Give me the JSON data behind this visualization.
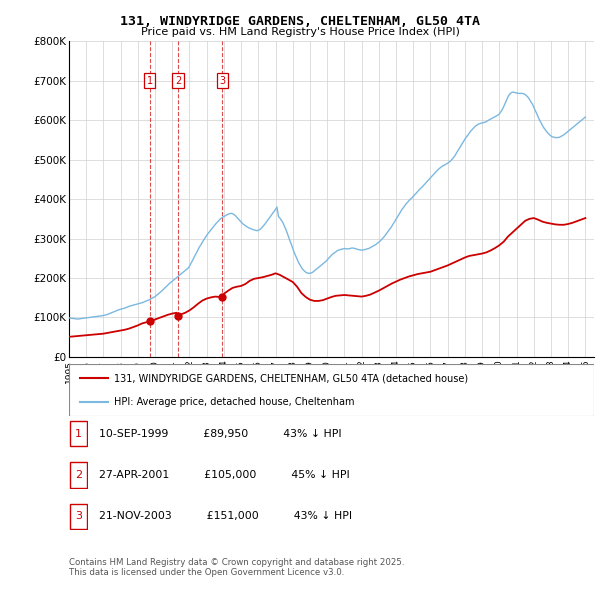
{
  "title": "131, WINDYRIDGE GARDENS, CHELTENHAM, GL50 4TA",
  "subtitle": "Price paid vs. HM Land Registry's House Price Index (HPI)",
  "hpi_label": "HPI: Average price, detached house, Cheltenham",
  "property_label": "131, WINDYRIDGE GARDENS, CHELTENHAM, GL50 4TA (detached house)",
  "footer": "Contains HM Land Registry data © Crown copyright and database right 2025.\nThis data is licensed under the Open Government Licence v3.0.",
  "hpi_color": "#7bb8e0",
  "property_color": "#cc0000",
  "vline_color": "#cc0000",
  "ylim": [
    0,
    800000
  ],
  "yticks": [
    0,
    100000,
    200000,
    300000,
    400000,
    500000,
    600000,
    700000,
    800000
  ],
  "ytick_labels": [
    "£0",
    "£100K",
    "£200K",
    "£300K",
    "£400K",
    "£500K",
    "£600K",
    "£700K",
    "£800K"
  ],
  "transactions": [
    {
      "label": "1",
      "date": "10-SEP-1999",
      "price_str": "£89,950",
      "hpi_rel": "43% ↓ HPI",
      "year": 1999.7,
      "price": 89950
    },
    {
      "label": "2",
      "date": "27-APR-2001",
      "price_str": "£105,000",
      "hpi_rel": "45% ↓ HPI",
      "year": 2001.33,
      "price": 105000
    },
    {
      "label": "3",
      "date": "21-NOV-2003",
      "price_str": "£151,000",
      "hpi_rel": "43% ↓ HPI",
      "year": 2003.89,
      "price": 151000
    }
  ],
  "hpi_data_x": [
    1995.0,
    1995.08,
    1995.17,
    1995.25,
    1995.33,
    1995.42,
    1995.5,
    1995.58,
    1995.67,
    1995.75,
    1995.83,
    1995.92,
    1996.0,
    1996.08,
    1996.17,
    1996.25,
    1996.33,
    1996.42,
    1996.5,
    1996.58,
    1996.67,
    1996.75,
    1996.83,
    1996.92,
    1997.0,
    1997.08,
    1997.17,
    1997.25,
    1997.33,
    1997.42,
    1997.5,
    1997.58,
    1997.67,
    1997.75,
    1997.83,
    1997.92,
    1998.0,
    1998.08,
    1998.17,
    1998.25,
    1998.33,
    1998.42,
    1998.5,
    1998.58,
    1998.67,
    1998.75,
    1998.83,
    1998.92,
    1999.0,
    1999.08,
    1999.17,
    1999.25,
    1999.33,
    1999.42,
    1999.5,
    1999.58,
    1999.67,
    1999.75,
    1999.83,
    1999.92,
    2000.0,
    2000.08,
    2000.17,
    2000.25,
    2000.33,
    2000.42,
    2000.5,
    2000.58,
    2000.67,
    2000.75,
    2000.83,
    2000.92,
    2001.0,
    2001.08,
    2001.17,
    2001.25,
    2001.33,
    2001.42,
    2001.5,
    2001.58,
    2001.67,
    2001.75,
    2001.83,
    2001.92,
    2002.0,
    2002.08,
    2002.17,
    2002.25,
    2002.33,
    2002.42,
    2002.5,
    2002.58,
    2002.67,
    2002.75,
    2002.83,
    2002.92,
    2003.0,
    2003.08,
    2003.17,
    2003.25,
    2003.33,
    2003.42,
    2003.5,
    2003.58,
    2003.67,
    2003.75,
    2003.83,
    2003.92,
    2004.0,
    2004.08,
    2004.17,
    2004.25,
    2004.33,
    2004.42,
    2004.5,
    2004.58,
    2004.67,
    2004.75,
    2004.83,
    2004.92,
    2005.0,
    2005.08,
    2005.17,
    2005.25,
    2005.33,
    2005.42,
    2005.5,
    2005.58,
    2005.67,
    2005.75,
    2005.83,
    2005.92,
    2006.0,
    2006.08,
    2006.17,
    2006.25,
    2006.33,
    2006.42,
    2006.5,
    2006.58,
    2006.67,
    2006.75,
    2006.83,
    2006.92,
    2007.0,
    2007.08,
    2007.17,
    2007.25,
    2007.33,
    2007.42,
    2007.5,
    2007.58,
    2007.67,
    2007.75,
    2007.83,
    2007.92,
    2008.0,
    2008.08,
    2008.17,
    2008.25,
    2008.33,
    2008.42,
    2008.5,
    2008.58,
    2008.67,
    2008.75,
    2008.83,
    2008.92,
    2009.0,
    2009.08,
    2009.17,
    2009.25,
    2009.33,
    2009.42,
    2009.5,
    2009.58,
    2009.67,
    2009.75,
    2009.83,
    2009.92,
    2010.0,
    2010.08,
    2010.17,
    2010.25,
    2010.33,
    2010.42,
    2010.5,
    2010.58,
    2010.67,
    2010.75,
    2010.83,
    2010.92,
    2011.0,
    2011.08,
    2011.17,
    2011.25,
    2011.33,
    2011.42,
    2011.5,
    2011.58,
    2011.67,
    2011.75,
    2011.83,
    2011.92,
    2012.0,
    2012.08,
    2012.17,
    2012.25,
    2012.33,
    2012.42,
    2012.5,
    2012.58,
    2012.67,
    2012.75,
    2012.83,
    2012.92,
    2013.0,
    2013.08,
    2013.17,
    2013.25,
    2013.33,
    2013.42,
    2013.5,
    2013.58,
    2013.67,
    2013.75,
    2013.83,
    2013.92,
    2014.0,
    2014.08,
    2014.17,
    2014.25,
    2014.33,
    2014.42,
    2014.5,
    2014.58,
    2014.67,
    2014.75,
    2014.83,
    2014.92,
    2015.0,
    2015.08,
    2015.17,
    2015.25,
    2015.33,
    2015.42,
    2015.5,
    2015.58,
    2015.67,
    2015.75,
    2015.83,
    2015.92,
    2016.0,
    2016.08,
    2016.17,
    2016.25,
    2016.33,
    2016.42,
    2016.5,
    2016.58,
    2016.67,
    2016.75,
    2016.83,
    2016.92,
    2017.0,
    2017.08,
    2017.17,
    2017.25,
    2017.33,
    2017.42,
    2017.5,
    2017.58,
    2017.67,
    2017.75,
    2017.83,
    2017.92,
    2018.0,
    2018.08,
    2018.17,
    2018.25,
    2018.33,
    2018.42,
    2018.5,
    2018.58,
    2018.67,
    2018.75,
    2018.83,
    2018.92,
    2019.0,
    2019.08,
    2019.17,
    2019.25,
    2019.33,
    2019.42,
    2019.5,
    2019.58,
    2019.67,
    2019.75,
    2019.83,
    2019.92,
    2020.0,
    2020.08,
    2020.17,
    2020.25,
    2020.33,
    2020.42,
    2020.5,
    2020.58,
    2020.67,
    2020.75,
    2020.83,
    2020.92,
    2021.0,
    2021.08,
    2021.17,
    2021.25,
    2021.33,
    2021.42,
    2021.5,
    2021.58,
    2021.67,
    2021.75,
    2021.83,
    2021.92,
    2022.0,
    2022.08,
    2022.17,
    2022.25,
    2022.33,
    2022.42,
    2022.5,
    2022.58,
    2022.67,
    2022.75,
    2022.83,
    2022.92,
    2023.0,
    2023.08,
    2023.17,
    2023.25,
    2023.33,
    2023.42,
    2023.5,
    2023.58,
    2023.67,
    2023.75,
    2023.83,
    2023.92,
    2024.0,
    2024.08,
    2024.17,
    2024.25,
    2024.33,
    2024.42,
    2024.5,
    2024.58,
    2024.67,
    2024.75,
    2024.83,
    2024.92,
    2025.0
  ],
  "hpi_data_y": [
    99000,
    98500,
    98000,
    97500,
    97000,
    96500,
    96000,
    96500,
    97000,
    97500,
    98000,
    98500,
    99000,
    99500,
    100000,
    100500,
    101000,
    101500,
    102000,
    102500,
    103000,
    103500,
    104000,
    104500,
    105000,
    106000,
    107000,
    108000,
    109500,
    111000,
    112500,
    114000,
    115500,
    117000,
    118500,
    120000,
    121000,
    122000,
    123000,
    124000,
    125500,
    127000,
    128500,
    129500,
    130500,
    131500,
    132500,
    133500,
    134500,
    135500,
    136500,
    137500,
    139000,
    140500,
    142000,
    143500,
    145000,
    147000,
    149000,
    151000,
    153000,
    156000,
    159000,
    162000,
    165000,
    168500,
    172000,
    175500,
    179000,
    182500,
    186000,
    189500,
    192000,
    195000,
    198000,
    201000,
    204000,
    207000,
    210000,
    213000,
    216000,
    219000,
    222000,
    225000,
    230000,
    237000,
    244000,
    251000,
    258000,
    265000,
    272000,
    279000,
    285000,
    291000,
    297000,
    303000,
    308000,
    313000,
    318000,
    322000,
    327000,
    332000,
    336000,
    340000,
    344000,
    348000,
    351000,
    354000,
    356000,
    358000,
    360000,
    362000,
    363000,
    364000,
    363000,
    361000,
    358000,
    354000,
    350000,
    346000,
    342000,
    338000,
    335000,
    332000,
    330000,
    328000,
    326000,
    325000,
    323000,
    322000,
    321000,
    320000,
    321000,
    323000,
    326000,
    330000,
    334000,
    339000,
    344000,
    349000,
    354000,
    359000,
    364000,
    369000,
    374000,
    380000,
    356000,
    352000,
    347000,
    341000,
    333000,
    325000,
    315000,
    305000,
    295000,
    285000,
    275000,
    265000,
    256000,
    248000,
    240000,
    233000,
    227000,
    222000,
    218000,
    215000,
    213000,
    212000,
    212000,
    213000,
    215000,
    218000,
    221000,
    224000,
    227000,
    230000,
    233000,
    236000,
    239000,
    242000,
    246000,
    250000,
    254000,
    258000,
    261000,
    264000,
    267000,
    269000,
    271000,
    272000,
    273000,
    274000,
    275000,
    274000,
    274000,
    274000,
    275000,
    276000,
    276000,
    275000,
    274000,
    273000,
    272000,
    271000,
    271000,
    271000,
    272000,
    273000,
    274000,
    275000,
    277000,
    279000,
    281000,
    283000,
    285000,
    288000,
    291000,
    294000,
    298000,
    302000,
    306000,
    311000,
    316000,
    321000,
    326000,
    331000,
    337000,
    343000,
    349000,
    355000,
    361000,
    367000,
    373000,
    378000,
    383000,
    388000,
    392000,
    396000,
    400000,
    403000,
    407000,
    411000,
    415000,
    419000,
    423000,
    427000,
    430000,
    434000,
    438000,
    442000,
    446000,
    450000,
    454000,
    458000,
    462000,
    466000,
    470000,
    474000,
    477000,
    480000,
    483000,
    485000,
    487000,
    489000,
    491000,
    494000,
    497000,
    501000,
    505000,
    510000,
    516000,
    522000,
    528000,
    534000,
    540000,
    546000,
    552000,
    557000,
    562000,
    567000,
    572000,
    576000,
    580000,
    584000,
    587000,
    589000,
    591000,
    592000,
    593000,
    594000,
    595000,
    597000,
    599000,
    601000,
    603000,
    605000,
    607000,
    609000,
    611000,
    613000,
    616000,
    621000,
    627000,
    634000,
    642000,
    651000,
    659000,
    665000,
    669000,
    671000,
    671000,
    670000,
    669000,
    668000,
    668000,
    668000,
    668000,
    667000,
    665000,
    662000,
    658000,
    653000,
    647000,
    641000,
    633000,
    625000,
    617000,
    609000,
    601000,
    594000,
    587000,
    581000,
    576000,
    571000,
    567000,
    563000,
    560000,
    558000,
    557000,
    556000,
    556000,
    556000,
    557000,
    559000,
    561000,
    563000,
    566000,
    569000,
    572000,
    575000,
    578000,
    581000,
    584000,
    587000,
    590000,
    593000,
    596000,
    599000,
    602000,
    605000,
    608000
  ],
  "prop_data_x": [
    1995.0,
    1995.25,
    1995.5,
    1995.75,
    1996.0,
    1996.25,
    1996.5,
    1996.75,
    1997.0,
    1997.25,
    1997.5,
    1997.75,
    1998.0,
    1998.25,
    1998.5,
    1998.75,
    1999.0,
    1999.25,
    1999.5,
    1999.7,
    1999.75,
    2000.0,
    2000.25,
    2000.5,
    2000.75,
    2001.0,
    2001.25,
    2001.33,
    2001.5,
    2001.75,
    2002.0,
    2002.25,
    2002.5,
    2002.75,
    2003.0,
    2003.25,
    2003.5,
    2003.75,
    2003.89,
    2004.0,
    2004.25,
    2004.5,
    2004.75,
    2005.0,
    2005.25,
    2005.5,
    2005.75,
    2006.0,
    2006.25,
    2006.5,
    2006.75,
    2007.0,
    2007.25,
    2007.5,
    2007.75,
    2008.0,
    2008.25,
    2008.5,
    2008.75,
    2009.0,
    2009.25,
    2009.5,
    2009.75,
    2010.0,
    2010.25,
    2010.5,
    2010.75,
    2011.0,
    2011.25,
    2011.5,
    2011.75,
    2012.0,
    2012.25,
    2012.5,
    2012.75,
    2013.0,
    2013.25,
    2013.5,
    2013.75,
    2014.0,
    2014.25,
    2014.5,
    2014.75,
    2015.0,
    2015.25,
    2015.5,
    2015.75,
    2016.0,
    2016.25,
    2016.5,
    2016.75,
    2017.0,
    2017.25,
    2017.5,
    2017.75,
    2018.0,
    2018.25,
    2018.5,
    2018.75,
    2019.0,
    2019.25,
    2019.5,
    2019.75,
    2020.0,
    2020.25,
    2020.5,
    2020.75,
    2021.0,
    2021.25,
    2021.5,
    2021.75,
    2022.0,
    2022.25,
    2022.5,
    2022.75,
    2023.0,
    2023.25,
    2023.5,
    2023.75,
    2024.0,
    2024.25,
    2024.5,
    2024.75,
    2025.0
  ],
  "prop_data_y": [
    51000,
    52000,
    53000,
    54000,
    55000,
    56000,
    57000,
    58000,
    59000,
    61000,
    63000,
    65000,
    67000,
    69000,
    72000,
    76000,
    80000,
    85000,
    88000,
    89950,
    90500,
    95000,
    99000,
    103000,
    107000,
    110000,
    112000,
    105000,
    108000,
    112000,
    118000,
    126000,
    135000,
    143000,
    148000,
    151000,
    153000,
    152000,
    151000,
    160000,
    168000,
    175000,
    178000,
    180000,
    185000,
    193000,
    198000,
    200000,
    202000,
    205000,
    208000,
    212000,
    208000,
    202000,
    196000,
    190000,
    178000,
    162000,
    152000,
    145000,
    142000,
    142000,
    144000,
    148000,
    152000,
    155000,
    156000,
    157000,
    156000,
    155000,
    154000,
    153000,
    155000,
    158000,
    163000,
    168000,
    174000,
    180000,
    186000,
    191000,
    196000,
    200000,
    204000,
    207000,
    210000,
    212000,
    214000,
    216000,
    220000,
    224000,
    228000,
    232000,
    237000,
    242000,
    247000,
    252000,
    256000,
    258000,
    260000,
    262000,
    265000,
    270000,
    276000,
    283000,
    292000,
    305000,
    315000,
    325000,
    335000,
    345000,
    350000,
    352000,
    348000,
    343000,
    340000,
    338000,
    336000,
    335000,
    335000,
    337000,
    340000,
    344000,
    348000,
    352000
  ]
}
